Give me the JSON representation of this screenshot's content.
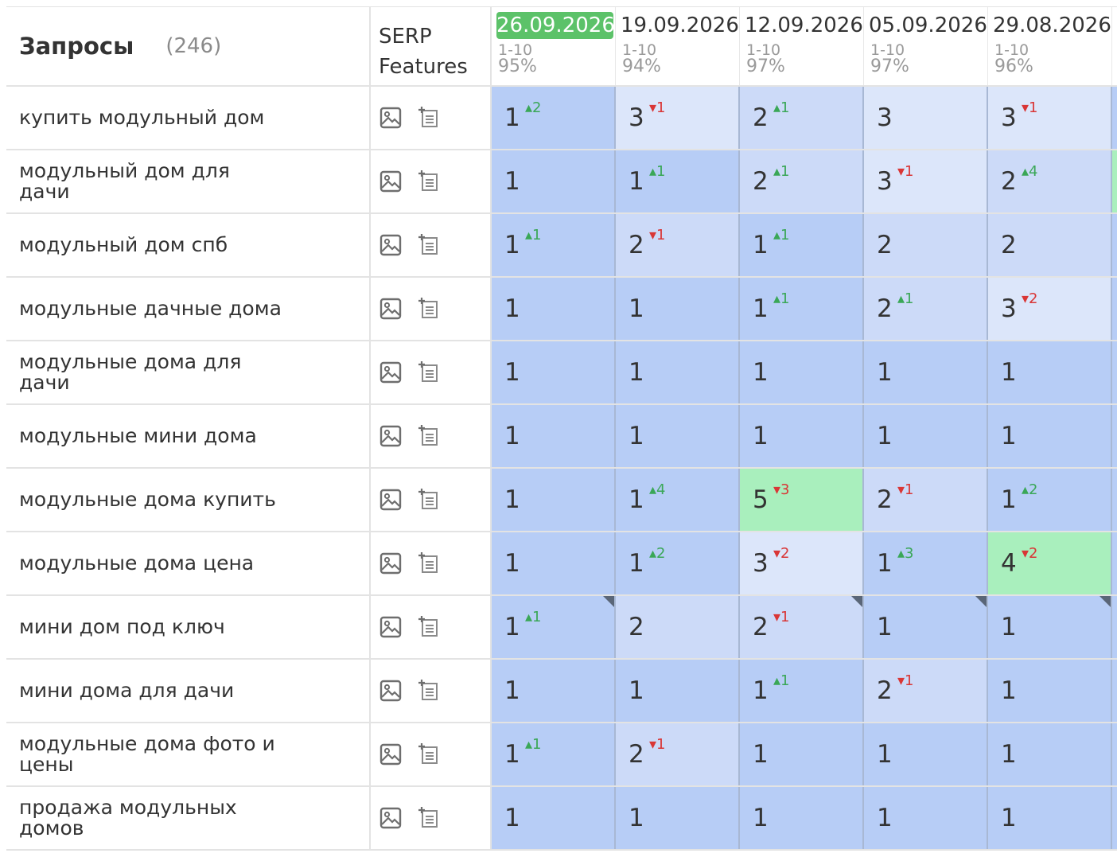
{
  "header": {
    "title": "Запросы",
    "count": "(246)",
    "serp_label": "SERP Features",
    "dates": [
      {
        "date": "26.09.2026",
        "range": "1-10",
        "pct": "95%",
        "current": true
      },
      {
        "date": "19.09.2026",
        "range": "1-10",
        "pct": "94%"
      },
      {
        "date": "12.09.2026",
        "range": "1-10",
        "pct": "97%"
      },
      {
        "date": "05.09.2026",
        "range": "1-10",
        "pct": "97%"
      },
      {
        "date": "29.08.2026",
        "range": "1-10",
        "pct": "96%"
      }
    ]
  },
  "icons": {
    "image": "image-icon",
    "add": "add-snippet-icon",
    "corner": "note-corner-icon"
  },
  "colors": {
    "current_date": "#5cc269",
    "up": "#3aa757",
    "down": "#d93636",
    "top": "#b7cdf6",
    "mid": "#ccdaf8",
    "light": "#dce6fa",
    "green": "#a9efbd"
  },
  "rows": [
    {
      "query": "купить модульный дом",
      "cells": [
        {
          "pos": "1",
          "ch": "2",
          "dir": "up"
        },
        {
          "pos": "3",
          "ch": "1",
          "dir": "down"
        },
        {
          "pos": "2",
          "ch": "1",
          "dir": "up"
        },
        {
          "pos": "3"
        },
        {
          "pos": "3",
          "ch": "1",
          "dir": "down"
        }
      ]
    },
    {
      "query": "модульный дом для дачи",
      "cells": [
        {
          "pos": "1"
        },
        {
          "pos": "1",
          "ch": "1",
          "dir": "up"
        },
        {
          "pos": "2",
          "ch": "1",
          "dir": "up"
        },
        {
          "pos": "3",
          "ch": "1",
          "dir": "down"
        },
        {
          "pos": "2",
          "ch": "4",
          "dir": "up"
        }
      ]
    },
    {
      "query": "модульный дом спб",
      "cells": [
        {
          "pos": "1",
          "ch": "1",
          "dir": "up"
        },
        {
          "pos": "2",
          "ch": "1",
          "dir": "down"
        },
        {
          "pos": "1",
          "ch": "1",
          "dir": "up"
        },
        {
          "pos": "2"
        },
        {
          "pos": "2"
        }
      ]
    },
    {
      "query": "модульные дачные дома",
      "cells": [
        {
          "pos": "1"
        },
        {
          "pos": "1"
        },
        {
          "pos": "1",
          "ch": "1",
          "dir": "up"
        },
        {
          "pos": "2",
          "ch": "1",
          "dir": "up"
        },
        {
          "pos": "3",
          "ch": "2",
          "dir": "down"
        }
      ]
    },
    {
      "query": "модульные дома для дачи",
      "cells": [
        {
          "pos": "1"
        },
        {
          "pos": "1"
        },
        {
          "pos": "1"
        },
        {
          "pos": "1"
        },
        {
          "pos": "1"
        }
      ]
    },
    {
      "query": "модульные мини дома",
      "cells": [
        {
          "pos": "1"
        },
        {
          "pos": "1"
        },
        {
          "pos": "1"
        },
        {
          "pos": "1"
        },
        {
          "pos": "1"
        }
      ]
    },
    {
      "query": "модульные дома купить",
      "cells": [
        {
          "pos": "1"
        },
        {
          "pos": "1",
          "ch": "4",
          "dir": "up"
        },
        {
          "pos": "5",
          "ch": "3",
          "dir": "down"
        },
        {
          "pos": "2",
          "ch": "1",
          "dir": "down"
        },
        {
          "pos": "1",
          "ch": "2",
          "dir": "up"
        }
      ]
    },
    {
      "query": "модульные дома цена",
      "cells": [
        {
          "pos": "1"
        },
        {
          "pos": "1",
          "ch": "2",
          "dir": "up"
        },
        {
          "pos": "3",
          "ch": "2",
          "dir": "down"
        },
        {
          "pos": "1",
          "ch": "3",
          "dir": "up"
        },
        {
          "pos": "4",
          "ch": "2",
          "dir": "down"
        }
      ]
    },
    {
      "query": "мини дом под ключ",
      "cells": [
        {
          "pos": "1",
          "ch": "1",
          "dir": "up"
        },
        {
          "pos": "2"
        },
        {
          "pos": "2",
          "ch": "1",
          "dir": "down"
        },
        {
          "pos": "1"
        },
        {
          "pos": "1"
        }
      ]
    },
    {
      "query": "мини дома для дачи",
      "cells": [
        {
          "pos": "1"
        },
        {
          "pos": "1"
        },
        {
          "pos": "1",
          "ch": "1",
          "dir": "up"
        },
        {
          "pos": "2",
          "ch": "1",
          "dir": "down"
        },
        {
          "pos": "1"
        }
      ]
    },
    {
      "query": "модульные дома фото и цены",
      "cells": [
        {
          "pos": "1",
          "ch": "1",
          "dir": "up"
        },
        {
          "pos": "2",
          "ch": "1",
          "dir": "down"
        },
        {
          "pos": "1"
        },
        {
          "pos": "1"
        },
        {
          "pos": "1"
        }
      ]
    },
    {
      "query": "продажа модульных домов",
      "cells": [
        {
          "pos": "1"
        },
        {
          "pos": "1"
        },
        {
          "pos": "1"
        },
        {
          "pos": "1"
        },
        {
          "pos": "1"
        }
      ]
    }
  ]
}
